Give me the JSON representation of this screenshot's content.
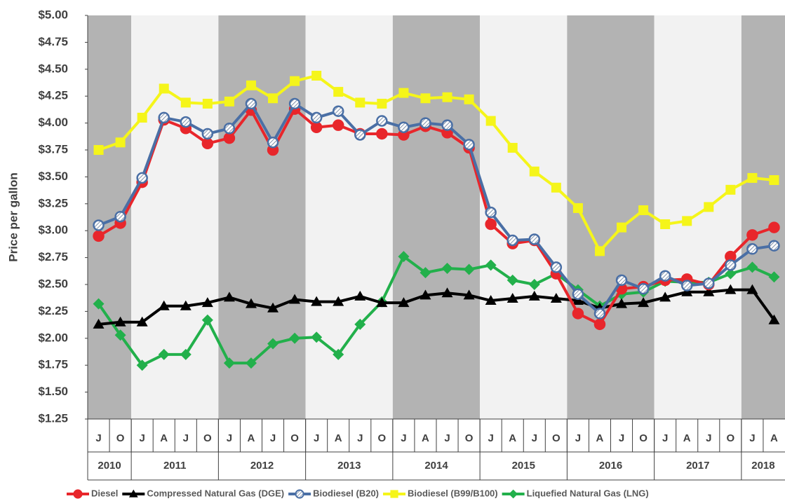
{
  "chart_data": {
    "type": "line",
    "y_label": "Price per gallon",
    "categories": [
      "J",
      "O",
      "J",
      "A",
      "J",
      "O",
      "J",
      "A",
      "J",
      "O",
      "J",
      "A",
      "J",
      "O",
      "J",
      "A",
      "J",
      "O",
      "J",
      "A",
      "J",
      "O",
      "J",
      "A",
      "J",
      "O",
      "J",
      "A",
      "J",
      "O",
      "J",
      "A"
    ],
    "years": [
      "2010",
      "2011",
      "2012",
      "2013",
      "2014",
      "2015",
      "2016",
      "2017",
      "2018"
    ],
    "band_colors": [
      "#b3b3b3",
      "#f2f2f2"
    ],
    "ylim": [
      1.25,
      5.0
    ],
    "yticks": [
      {
        "value": 1.25,
        "label": "$1.25"
      },
      {
        "value": 1.5,
        "label": "$1.50"
      },
      {
        "value": 1.75,
        "label": "$1.75"
      },
      {
        "value": 2.0,
        "label": "$2.00"
      },
      {
        "value": 2.25,
        "label": "$2.25"
      },
      {
        "value": 2.5,
        "label": "$2.50"
      },
      {
        "value": 2.75,
        "label": "$2.75"
      },
      {
        "value": 3.0,
        "label": "$3.00"
      },
      {
        "value": 3.25,
        "label": "$3.25"
      },
      {
        "value": 3.5,
        "label": "$3.50"
      },
      {
        "value": 3.75,
        "label": "$3.75"
      },
      {
        "value": 4.0,
        "label": "$4.00"
      },
      {
        "value": 4.25,
        "label": "$4.25"
      },
      {
        "value": 4.5,
        "label": "$4.50"
      },
      {
        "value": 4.75,
        "label": "$4.75"
      },
      {
        "value": 5.0,
        "label": "$5.00"
      }
    ],
    "series": [
      {
        "name": "Diesel",
        "color": "#e8262b",
        "marker": "circle",
        "marker_fill": "#e8262b",
        "values": [
          2.95,
          3.07,
          3.45,
          4.03,
          3.95,
          3.81,
          3.86,
          4.12,
          3.75,
          4.13,
          3.96,
          3.98,
          3.9,
          3.9,
          3.89,
          3.97,
          3.91,
          3.77,
          3.06,
          2.88,
          2.91,
          2.6,
          2.23,
          2.13,
          2.46,
          2.48,
          2.54,
          2.55,
          2.5,
          2.76,
          2.96,
          3.03
        ]
      },
      {
        "name": "Compressed Natural Gas (DGE)",
        "color": "#000000",
        "marker": "triangle",
        "marker_fill": "#000000",
        "values": [
          2.13,
          2.15,
          2.15,
          2.3,
          2.3,
          2.33,
          2.38,
          2.32,
          2.28,
          2.36,
          2.34,
          2.34,
          2.39,
          2.33,
          2.33,
          2.4,
          2.42,
          2.4,
          2.35,
          2.37,
          2.39,
          2.37,
          2.35,
          2.28,
          2.32,
          2.33,
          2.38,
          2.43,
          2.43,
          2.45,
          2.45,
          2.17
        ]
      },
      {
        "name": "Biodiesel (B20)",
        "color": "#4a6fa5",
        "marker": "circle",
        "marker_fill": "url(#hatch)",
        "values": [
          3.05,
          3.13,
          3.49,
          4.05,
          4.01,
          3.9,
          3.95,
          4.18,
          3.82,
          4.18,
          4.05,
          4.11,
          3.89,
          4.02,
          3.96,
          4.0,
          3.98,
          3.8,
          3.17,
          2.91,
          2.92,
          2.66,
          2.41,
          2.23,
          2.54,
          2.46,
          2.58,
          2.49,
          2.51,
          2.68,
          2.83,
          2.86
        ]
      },
      {
        "name": "Biodiesel (B99/B100)",
        "color": "#f5f51a",
        "marker": "square",
        "marker_fill": "#f5f51a",
        "values": [
          3.75,
          3.82,
          4.05,
          4.32,
          4.19,
          4.18,
          4.2,
          4.35,
          4.23,
          4.39,
          4.44,
          4.29,
          4.19,
          4.18,
          4.28,
          4.23,
          4.24,
          4.22,
          4.02,
          3.77,
          3.55,
          3.4,
          3.21,
          2.81,
          3.03,
          3.19,
          3.06,
          3.09,
          3.22,
          3.38,
          3.49,
          3.47
        ]
      },
      {
        "name": "Liquefied Natural Gas (LNG)",
        "color": "#22b04b",
        "marker": "diamond",
        "marker_fill": "#22b04b",
        "values": [
          2.32,
          2.03,
          1.75,
          1.85,
          1.85,
          2.17,
          1.77,
          1.77,
          1.95,
          2.0,
          2.01,
          1.85,
          2.13,
          2.34,
          2.76,
          2.61,
          2.65,
          2.64,
          2.68,
          2.54,
          2.5,
          2.6,
          2.45,
          2.3,
          2.41,
          2.43,
          2.53,
          2.52,
          2.52,
          2.6,
          2.66,
          2.57
        ]
      }
    ]
  }
}
